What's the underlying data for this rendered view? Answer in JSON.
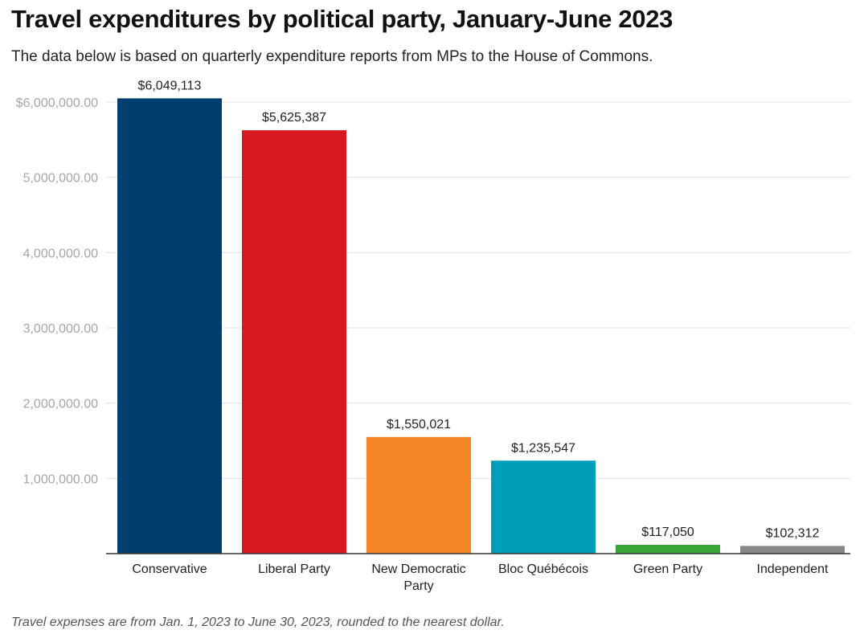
{
  "title": "Travel expenditures by political party, January-June 2023",
  "subtitle": "The data below is based on quarterly expenditure reports from MPs to the House of Commons.",
  "footnote": "Travel expenses are from Jan. 1, 2023 to June 30, 2023, rounded to the nearest dollar.",
  "chart_data": {
    "type": "bar",
    "title": "Travel expenditures by political party, January-June 2023",
    "xlabel": "",
    "ylabel": "",
    "ylim": [
      0,
      6000000
    ],
    "grid": true,
    "yticks": [
      {
        "value": 1000000,
        "label": "1,000,000.00"
      },
      {
        "value": 2000000,
        "label": "2,000,000.00"
      },
      {
        "value": 3000000,
        "label": "3,000,000.00"
      },
      {
        "value": 4000000,
        "label": "4,000,000.00"
      },
      {
        "value": 5000000,
        "label": "5,000,000.00"
      },
      {
        "value": 6000000,
        "label": "$6,000,000.00"
      }
    ],
    "categories": [
      [
        "Conservative"
      ],
      [
        "Liberal Party"
      ],
      [
        "New Democratic",
        "Party"
      ],
      [
        "Bloc Québécois"
      ],
      [
        "Green Party"
      ],
      [
        "Independent"
      ]
    ],
    "values": [
      6049113,
      5625387,
      1550021,
      1235547,
      117050,
      102312
    ],
    "data_labels": [
      "$6,049,113",
      "$5,625,387",
      "$1,550,021",
      "$1,235,547",
      "$117,050",
      "$102,312"
    ],
    "colors": [
      "#003e70",
      "#d71920",
      "#f58426",
      "#009fb7",
      "#3aa537",
      "#878787"
    ]
  }
}
